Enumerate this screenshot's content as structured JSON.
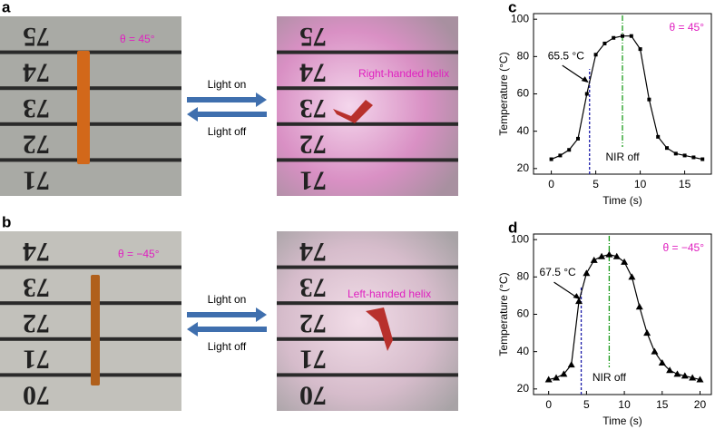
{
  "panels": [
    {
      "label": "a",
      "theta": "θ = 45°",
      "numbers": [
        "75",
        "74",
        "73",
        "72",
        "71"
      ],
      "annotation": "Right-handed helix",
      "light_on": "Light on",
      "light_off": "Light off"
    },
    {
      "label": "b",
      "theta": "θ = −45°",
      "numbers": [
        "74",
        "73",
        "72",
        "71",
        "70"
      ],
      "annotation": "Left-handed helix",
      "light_on": "Light on",
      "light_off": "Light off"
    }
  ],
  "chart_data": [
    {
      "type": "line",
      "panel_label": "c",
      "condition": "θ = 45°",
      "marker": "square",
      "color": "#000000",
      "x_label": "Time (s)",
      "y_label": "Temperature (°C)",
      "x": [
        0,
        1,
        2,
        3,
        4,
        5,
        6,
        7,
        8,
        9,
        10,
        11,
        12,
        13,
        14,
        15,
        16,
        17
      ],
      "values": [
        25,
        27,
        30,
        36,
        60,
        81,
        87,
        90,
        91,
        91,
        84,
        57,
        37,
        31,
        28,
        27,
        26,
        25
      ],
      "xlim": [
        -2,
        18
      ],
      "ylim": [
        17,
        103
      ],
      "xticks": [
        0,
        5,
        10,
        15
      ],
      "yticks": [
        20,
        40,
        60,
        80,
        100
      ],
      "callout": {
        "text": "65.5 °C",
        "x": 4.3,
        "y": 65.5
      },
      "vline_heat": {
        "x": 4.3,
        "color": "#1a1aa8"
      },
      "vline_off": {
        "x": 8,
        "color": "#1a9a1a",
        "label": "NIR off"
      }
    },
    {
      "type": "line",
      "panel_label": "d",
      "condition": "θ = −45°",
      "marker": "triangle",
      "color": "#000000",
      "x_label": "Time (s)",
      "y_label": "Temperature (°C)",
      "x": [
        0,
        1,
        2,
        3,
        4,
        5,
        6,
        7,
        8,
        9,
        10,
        11,
        12,
        13,
        14,
        15,
        16,
        17,
        18,
        19,
        20
      ],
      "values": [
        25,
        26,
        28,
        33,
        67,
        82,
        89,
        91,
        92,
        91,
        88,
        80,
        64,
        50,
        40,
        34,
        30,
        28,
        27,
        26,
        25
      ],
      "xlim": [
        -2,
        21.5
      ],
      "ylim": [
        17,
        103
      ],
      "xticks": [
        0,
        5,
        10,
        15,
        20
      ],
      "yticks": [
        20,
        40,
        60,
        80,
        100
      ],
      "callout": {
        "text": "67.5 °C",
        "x": 4.3,
        "y": 67.5
      },
      "vline_heat": {
        "x": 4.3,
        "color": "#1a1aa8"
      },
      "vline_off": {
        "x": 8,
        "color": "#1a9a1a",
        "label": "NIR off"
      }
    }
  ]
}
